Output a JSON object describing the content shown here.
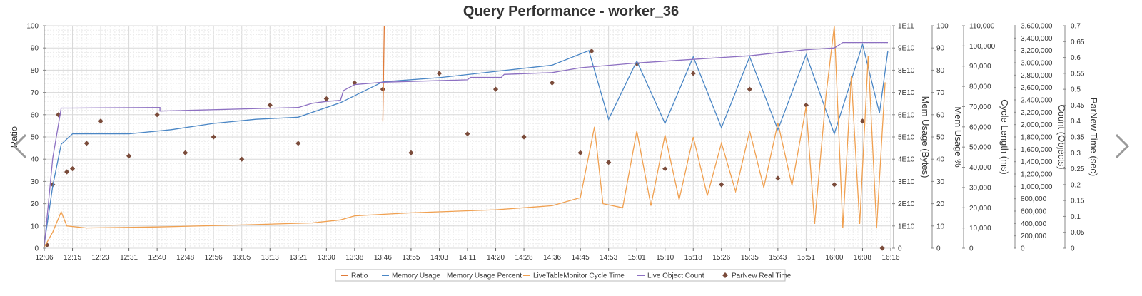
{
  "chart_data": {
    "type": "line",
    "title": "Query Performance - worker_36",
    "x_ticks": [
      "12:06",
      "12:15",
      "12:23",
      "12:31",
      "12:40",
      "12:48",
      "12:56",
      "13:05",
      "13:13",
      "13:21",
      "13:30",
      "13:38",
      "13:46",
      "13:55",
      "14:03",
      "14:11",
      "14:20",
      "14:28",
      "14:36",
      "14:45",
      "14:53",
      "15:01",
      "15:10",
      "15:18",
      "15:26",
      "15:35",
      "15:43",
      "15:51",
      "16:00",
      "16:08",
      "16:16"
    ],
    "axes": [
      {
        "id": "ratio",
        "title": "Ratio",
        "ticks": [
          "100",
          "90",
          "80",
          "70",
          "60",
          "50",
          "40",
          "30",
          "20",
          "10",
          "0"
        ],
        "range": [
          0,
          100
        ]
      },
      {
        "id": "mem_bytes",
        "title": "Mem Usage (Bytes)",
        "ticks": [
          "1E11",
          "9E10",
          "8E10",
          "7E10",
          "6E10",
          "5E10",
          "4E10",
          "3E10",
          "2E10",
          "1E10",
          "0"
        ],
        "range": [
          0,
          107000000000
        ]
      },
      {
        "id": "mem_pct",
        "title": "Mem Usage %",
        "ticks": [
          "100",
          "90",
          "80",
          "70",
          "60",
          "50",
          "40",
          "30",
          "20",
          "10",
          "0"
        ],
        "range": [
          0,
          100
        ]
      },
      {
        "id": "cycle",
        "title": "Cycle Length (ms)",
        "ticks": [
          "110,000",
          "100,000",
          "90,000",
          "80,000",
          "70,000",
          "60,000",
          "50,000",
          "40,000",
          "30,000",
          "20,000",
          "10,000",
          "0"
        ],
        "range": [
          0,
          110000
        ]
      },
      {
        "id": "count",
        "title": "Count (Objects)",
        "ticks": [
          "3,600,000",
          "3,400,000",
          "3,200,000",
          "3,000,000",
          "2,800,000",
          "2,600,000",
          "2,400,000",
          "2,200,000",
          "2,000,000",
          "1,800,000",
          "1,600,000",
          "1,400,000",
          "1,200,000",
          "1,000,000",
          "800,000",
          "600,000",
          "400,000",
          "200,000",
          "0"
        ],
        "range": [
          0,
          3700000
        ]
      },
      {
        "id": "parnew",
        "title": "ParNew Time (sec)",
        "ticks": [
          "0.7",
          "0.65",
          "0.6",
          "0.55",
          "0.5",
          "0.45",
          "0.4",
          "0.35",
          "0.3",
          "0.25",
          "0.2",
          "0.15",
          "0.1",
          "0.05",
          "0"
        ],
        "range": [
          0,
          0.7
        ]
      }
    ],
    "series": [
      {
        "name": "Ratio",
        "color": "#e07b39",
        "axis": "ratio",
        "points": [
          [
            12.0,
            57
          ],
          [
            12.05,
            100
          ]
        ]
      },
      {
        "name": "Memory Usage",
        "color": "#4a86c5",
        "axis": "mem_bytes",
        "points": [
          [
            0.0,
            2000000000
          ],
          [
            0.3,
            30000000000
          ],
          [
            0.6,
            50000000000
          ],
          [
            1.0,
            55000000000
          ],
          [
            3.0,
            55000000000
          ],
          [
            4.5,
            57000000000
          ],
          [
            6.0,
            60000000000
          ],
          [
            7.5,
            62000000000
          ],
          [
            9.0,
            63000000000
          ],
          [
            10.5,
            70000000000
          ],
          [
            12.0,
            80000000000
          ],
          [
            14.0,
            82000000000
          ],
          [
            16.0,
            85000000000
          ],
          [
            18.0,
            88000000000
          ],
          [
            19.3,
            95000000000
          ],
          [
            20.0,
            62000000000
          ],
          [
            21.0,
            90000000000
          ],
          [
            22.0,
            60000000000
          ],
          [
            23.0,
            92000000000
          ],
          [
            24.0,
            58000000000
          ],
          [
            25.0,
            92000000000
          ],
          [
            26.0,
            57000000000
          ],
          [
            27.0,
            93000000000
          ],
          [
            28.0,
            55000000000
          ],
          [
            29.0,
            98000000000
          ],
          [
            29.6,
            65000000000
          ],
          [
            29.9,
            95000000000
          ]
        ]
      },
      {
        "name": "Memory Usage Percent",
        "color": "#9a9a9a",
        "axis": "mem_pct",
        "points": []
      },
      {
        "name": "LiveTableMonitor Cycle Time",
        "color": "#f0a050",
        "axis": "cycle",
        "points": [
          [
            0.0,
            500
          ],
          [
            0.3,
            8000
          ],
          [
            0.6,
            18000
          ],
          [
            0.8,
            11000
          ],
          [
            1.5,
            10000
          ],
          [
            4.0,
            10500
          ],
          [
            7.0,
            11500
          ],
          [
            9.5,
            12500
          ],
          [
            10.5,
            14000
          ],
          [
            11.0,
            16000
          ],
          [
            13.0,
            17500
          ],
          [
            16.0,
            19000
          ],
          [
            18.0,
            21000
          ],
          [
            19.0,
            25000
          ],
          [
            19.5,
            60000
          ],
          [
            19.8,
            22000
          ],
          [
            20.5,
            20000
          ],
          [
            21.0,
            58000
          ],
          [
            21.5,
            21000
          ],
          [
            22.0,
            56000
          ],
          [
            22.5,
            24000
          ],
          [
            23.0,
            55000
          ],
          [
            23.5,
            26000
          ],
          [
            24.0,
            52000
          ],
          [
            24.5,
            28000
          ],
          [
            25.0,
            58000
          ],
          [
            25.5,
            30000
          ],
          [
            26.0,
            62000
          ],
          [
            26.5,
            31000
          ],
          [
            27.0,
            70000
          ],
          [
            27.3,
            12000
          ],
          [
            27.7,
            75000
          ],
          [
            28.0,
            110000
          ],
          [
            28.3,
            10000
          ],
          [
            28.6,
            85000
          ],
          [
            28.9,
            12000
          ],
          [
            29.2,
            95000
          ],
          [
            29.5,
            10000
          ],
          [
            29.8,
            82000
          ]
        ]
      },
      {
        "name": "Live Object Count",
        "color": "#8d70c2",
        "axis": "count",
        "points": [
          [
            0.0,
            30000
          ],
          [
            0.3,
            1500000
          ],
          [
            0.6,
            2330000
          ],
          [
            1.0,
            2330000
          ],
          [
            4.1,
            2340000
          ],
          [
            4.1,
            2280000
          ],
          [
            9.0,
            2340000
          ],
          [
            9.5,
            2410000
          ],
          [
            10.0,
            2440000
          ],
          [
            10.5,
            2460000
          ],
          [
            10.6,
            2620000
          ],
          [
            11.0,
            2720000
          ],
          [
            12.0,
            2760000
          ],
          [
            15.0,
            2800000
          ],
          [
            15.1,
            2840000
          ],
          [
            16.2,
            2840000
          ],
          [
            16.3,
            2890000
          ],
          [
            18.0,
            2920000
          ],
          [
            19.0,
            3000000
          ],
          [
            21.0,
            3080000
          ],
          [
            23.0,
            3140000
          ],
          [
            25.0,
            3200000
          ],
          [
            27.0,
            3300000
          ],
          [
            28.0,
            3330000
          ],
          [
            28.3,
            3420000
          ],
          [
            29.9,
            3420000
          ]
        ]
      },
      {
        "name": "ParNew Real Time",
        "color": "#7a4b3a",
        "axis": "parnew",
        "marker": "diamond",
        "points": [
          [
            0.1,
            0.01
          ],
          [
            0.3,
            0.2
          ],
          [
            0.5,
            0.42
          ],
          [
            0.8,
            0.24
          ],
          [
            1.0,
            0.25
          ],
          [
            1.5,
            0.33
          ],
          [
            2.0,
            0.4
          ],
          [
            3.0,
            0.29
          ],
          [
            4.0,
            0.42
          ],
          [
            5.0,
            0.3
          ],
          [
            6.0,
            0.35
          ],
          [
            7.0,
            0.28
          ],
          [
            8.0,
            0.45
          ],
          [
            9.0,
            0.33
          ],
          [
            10.0,
            0.47
          ],
          [
            11.0,
            0.52
          ],
          [
            12.0,
            0.5
          ],
          [
            13.0,
            0.3
          ],
          [
            14.0,
            0.55
          ],
          [
            15.0,
            0.36
          ],
          [
            16.0,
            0.5
          ],
          [
            17.0,
            0.35
          ],
          [
            18.0,
            0.52
          ],
          [
            19.0,
            0.3
          ],
          [
            19.4,
            0.62
          ],
          [
            20.0,
            0.27
          ],
          [
            21.0,
            0.58
          ],
          [
            22.0,
            0.25
          ],
          [
            23.0,
            0.55
          ],
          [
            24.0,
            0.2
          ],
          [
            25.0,
            0.5
          ],
          [
            26.0,
            0.22
          ],
          [
            27.0,
            0.45
          ],
          [
            28.0,
            0.2
          ],
          [
            29.0,
            0.4
          ],
          [
            29.7,
            0.0
          ]
        ]
      }
    ],
    "legend": {
      "position": "bottom-center",
      "entries": [
        "Ratio",
        "Memory Usage",
        "Memory Usage Percent",
        "LiveTableMonitor Cycle Time",
        "Live Object Count",
        "ParNew Real Time"
      ]
    },
    "grid": true
  }
}
